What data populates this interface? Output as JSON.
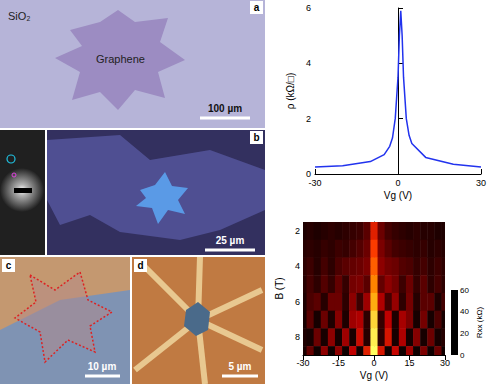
{
  "panels": [
    {
      "label": "a",
      "substrate": "SiO₂",
      "flake": "Graphene",
      "scale_bar": "100 µm"
    },
    {
      "label": "b",
      "scale_bar": "25 µm"
    },
    {
      "label": "c",
      "scale_bar": "10 µm"
    },
    {
      "label": "d",
      "scale_bar": "5 µm"
    }
  ],
  "chart_data": [
    {
      "type": "line",
      "x": [
        -30,
        -20,
        -10,
        -5,
        -3,
        -2,
        -1,
        0,
        0.5,
        1,
        1.5,
        2,
        3,
        4,
        5,
        10,
        20,
        30
      ],
      "values": [
        0.25,
        0.3,
        0.45,
        0.7,
        1.0,
        1.3,
        2.0,
        3.5,
        5.0,
        5.9,
        5.0,
        3.5,
        2.0,
        1.4,
        1.1,
        0.6,
        0.35,
        0.25
      ],
      "color": "#2233ee",
      "xlabel": "Vg (V)",
      "ylabel": "ρ (kΩ/□)",
      "xlim": [
        -30,
        30
      ],
      "xticks": [
        -30,
        0,
        30
      ],
      "ylim": [
        0,
        6
      ],
      "yticks": [
        0,
        2,
        4,
        6
      ],
      "grid": false
    },
    {
      "type": "heatmap",
      "x": [
        -30,
        -27,
        -24,
        -21,
        -18,
        -15,
        -12,
        -9,
        -6,
        -3,
        0,
        3,
        6,
        9,
        12,
        15,
        18,
        21,
        24,
        27,
        30
      ],
      "y": [
        2,
        3,
        4,
        5,
        6,
        7,
        8,
        9
      ],
      "cells": [
        [
          4,
          5,
          4,
          5,
          6,
          5,
          6,
          7,
          8,
          12,
          30,
          14,
          9,
          7,
          6,
          5,
          6,
          5,
          5,
          4,
          4
        ],
        [
          5,
          6,
          5,
          7,
          6,
          8,
          7,
          9,
          11,
          14,
          35,
          16,
          12,
          9,
          8,
          7,
          6,
          7,
          5,
          6,
          5
        ],
        [
          6,
          8,
          5,
          9,
          6,
          10,
          12,
          13,
          14,
          16,
          40,
          18,
          15,
          14,
          11,
          10,
          7,
          9,
          6,
          8,
          6
        ],
        [
          5,
          9,
          6,
          11,
          7,
          13,
          7,
          15,
          16,
          12,
          45,
          13,
          18,
          15,
          8,
          14,
          7,
          12,
          6,
          9,
          6
        ],
        [
          4,
          10,
          12,
          5,
          14,
          14,
          6,
          18,
          8,
          20,
          50,
          22,
          9,
          19,
          6,
          15,
          5,
          12,
          12,
          4,
          9
        ],
        [
          3,
          12,
          3,
          14,
          4,
          17,
          4,
          20,
          22,
          6,
          55,
          7,
          24,
          4,
          21,
          16,
          3,
          15,
          3,
          10,
          3
        ],
        [
          4,
          3,
          14,
          3,
          18,
          3,
          20,
          3,
          26,
          5,
          58,
          6,
          28,
          3,
          22,
          3,
          17,
          3,
          14,
          3,
          5
        ],
        [
          3,
          13,
          2,
          18,
          2,
          18,
          2,
          24,
          2,
          30,
          60,
          28,
          2,
          25,
          2,
          20,
          2,
          16,
          2,
          14,
          2
        ]
      ],
      "xlabel": "Vg (V)",
      "ylabel": "B (T)",
      "xlim": [
        -30,
        30
      ],
      "xticks": [
        -30,
        -15,
        0,
        15,
        30
      ],
      "ylim": [
        9,
        1.5
      ],
      "yticks": [
        2,
        4,
        6,
        8
      ],
      "colorbar": {
        "label": "Rxx (kΩ)",
        "range": [
          0,
          60
        ],
        "ticks": [
          0,
          20,
          40,
          60
        ]
      }
    }
  ]
}
